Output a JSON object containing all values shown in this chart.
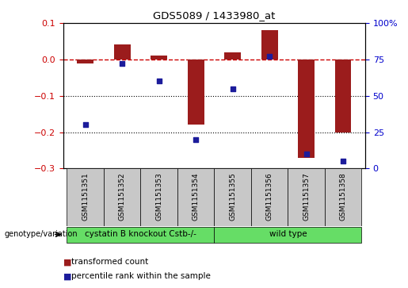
{
  "title": "GDS5089 / 1433980_at",
  "samples": [
    "GSM1151351",
    "GSM1151352",
    "GSM1151353",
    "GSM1151354",
    "GSM1151355",
    "GSM1151356",
    "GSM1151357",
    "GSM1151358"
  ],
  "transformed_count": [
    -0.012,
    0.042,
    0.01,
    -0.18,
    0.02,
    0.08,
    -0.27,
    -0.2
  ],
  "percentile_rank": [
    30,
    72,
    60,
    20,
    55,
    77,
    10,
    5
  ],
  "ylim_left": [
    -0.3,
    0.1
  ],
  "ylim_right": [
    0,
    100
  ],
  "bar_color": "#9B1C1C",
  "dot_color": "#1C1C9B",
  "groups": [
    {
      "label": "cystatin B knockout Cstb-/-",
      "start": 0,
      "end": 3,
      "color": "#66DD66"
    },
    {
      "label": "wild type",
      "start": 4,
      "end": 7,
      "color": "#66DD66"
    }
  ],
  "legend_items": [
    {
      "label": "transformed count",
      "color": "#9B1C1C"
    },
    {
      "label": "percentile rank within the sample",
      "color": "#1C1C9B"
    }
  ],
  "zero_line_color": "#CC0000",
  "label_area_color": "#C8C8C8",
  "genotype_label": "genotype/variation"
}
